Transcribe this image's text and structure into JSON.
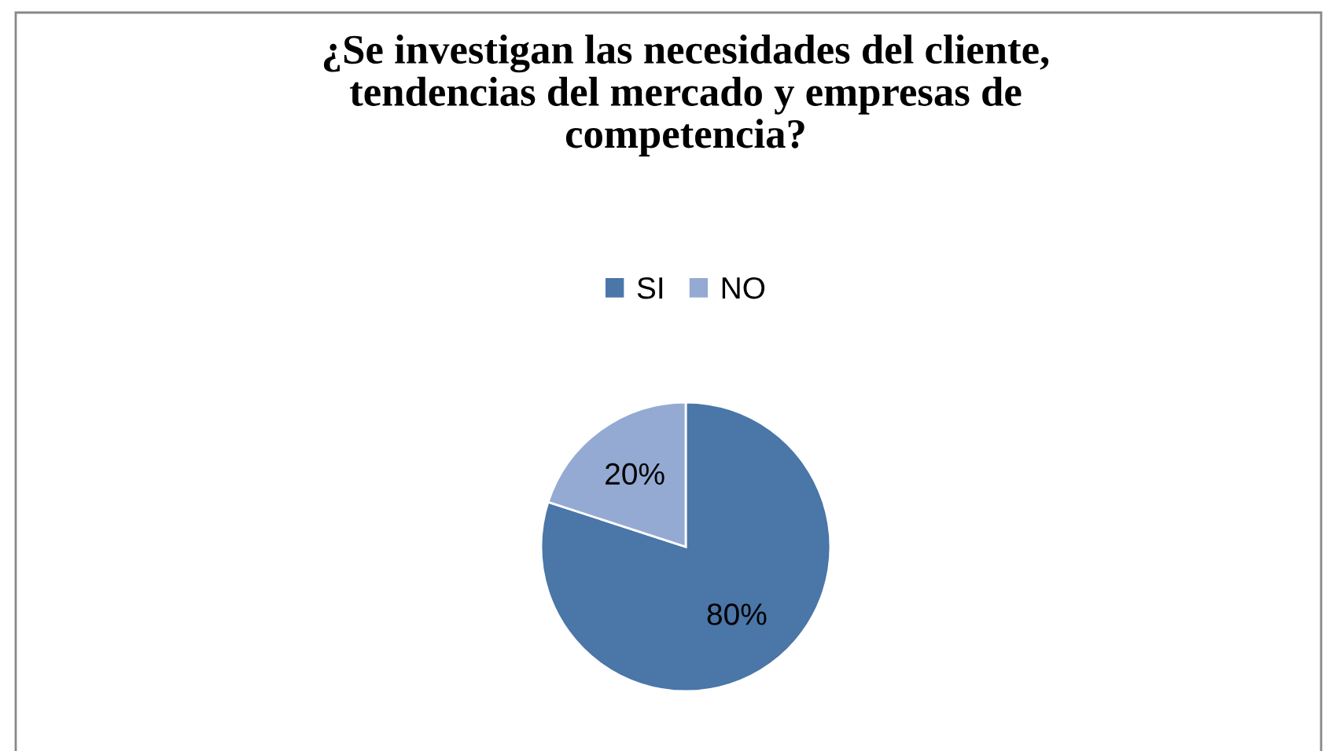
{
  "chart_data": {
    "type": "pie",
    "title": "¿Se investigan las necesidades del cliente,\ntendencias del mercado y empresas de\ncompetencia?",
    "categories": [
      "SI",
      "NO"
    ],
    "values": [
      80,
      20
    ],
    "colors": [
      "#4a76a8",
      "#94aad3"
    ],
    "value_labels": [
      "80%",
      "20%"
    ],
    "legend": "top"
  }
}
